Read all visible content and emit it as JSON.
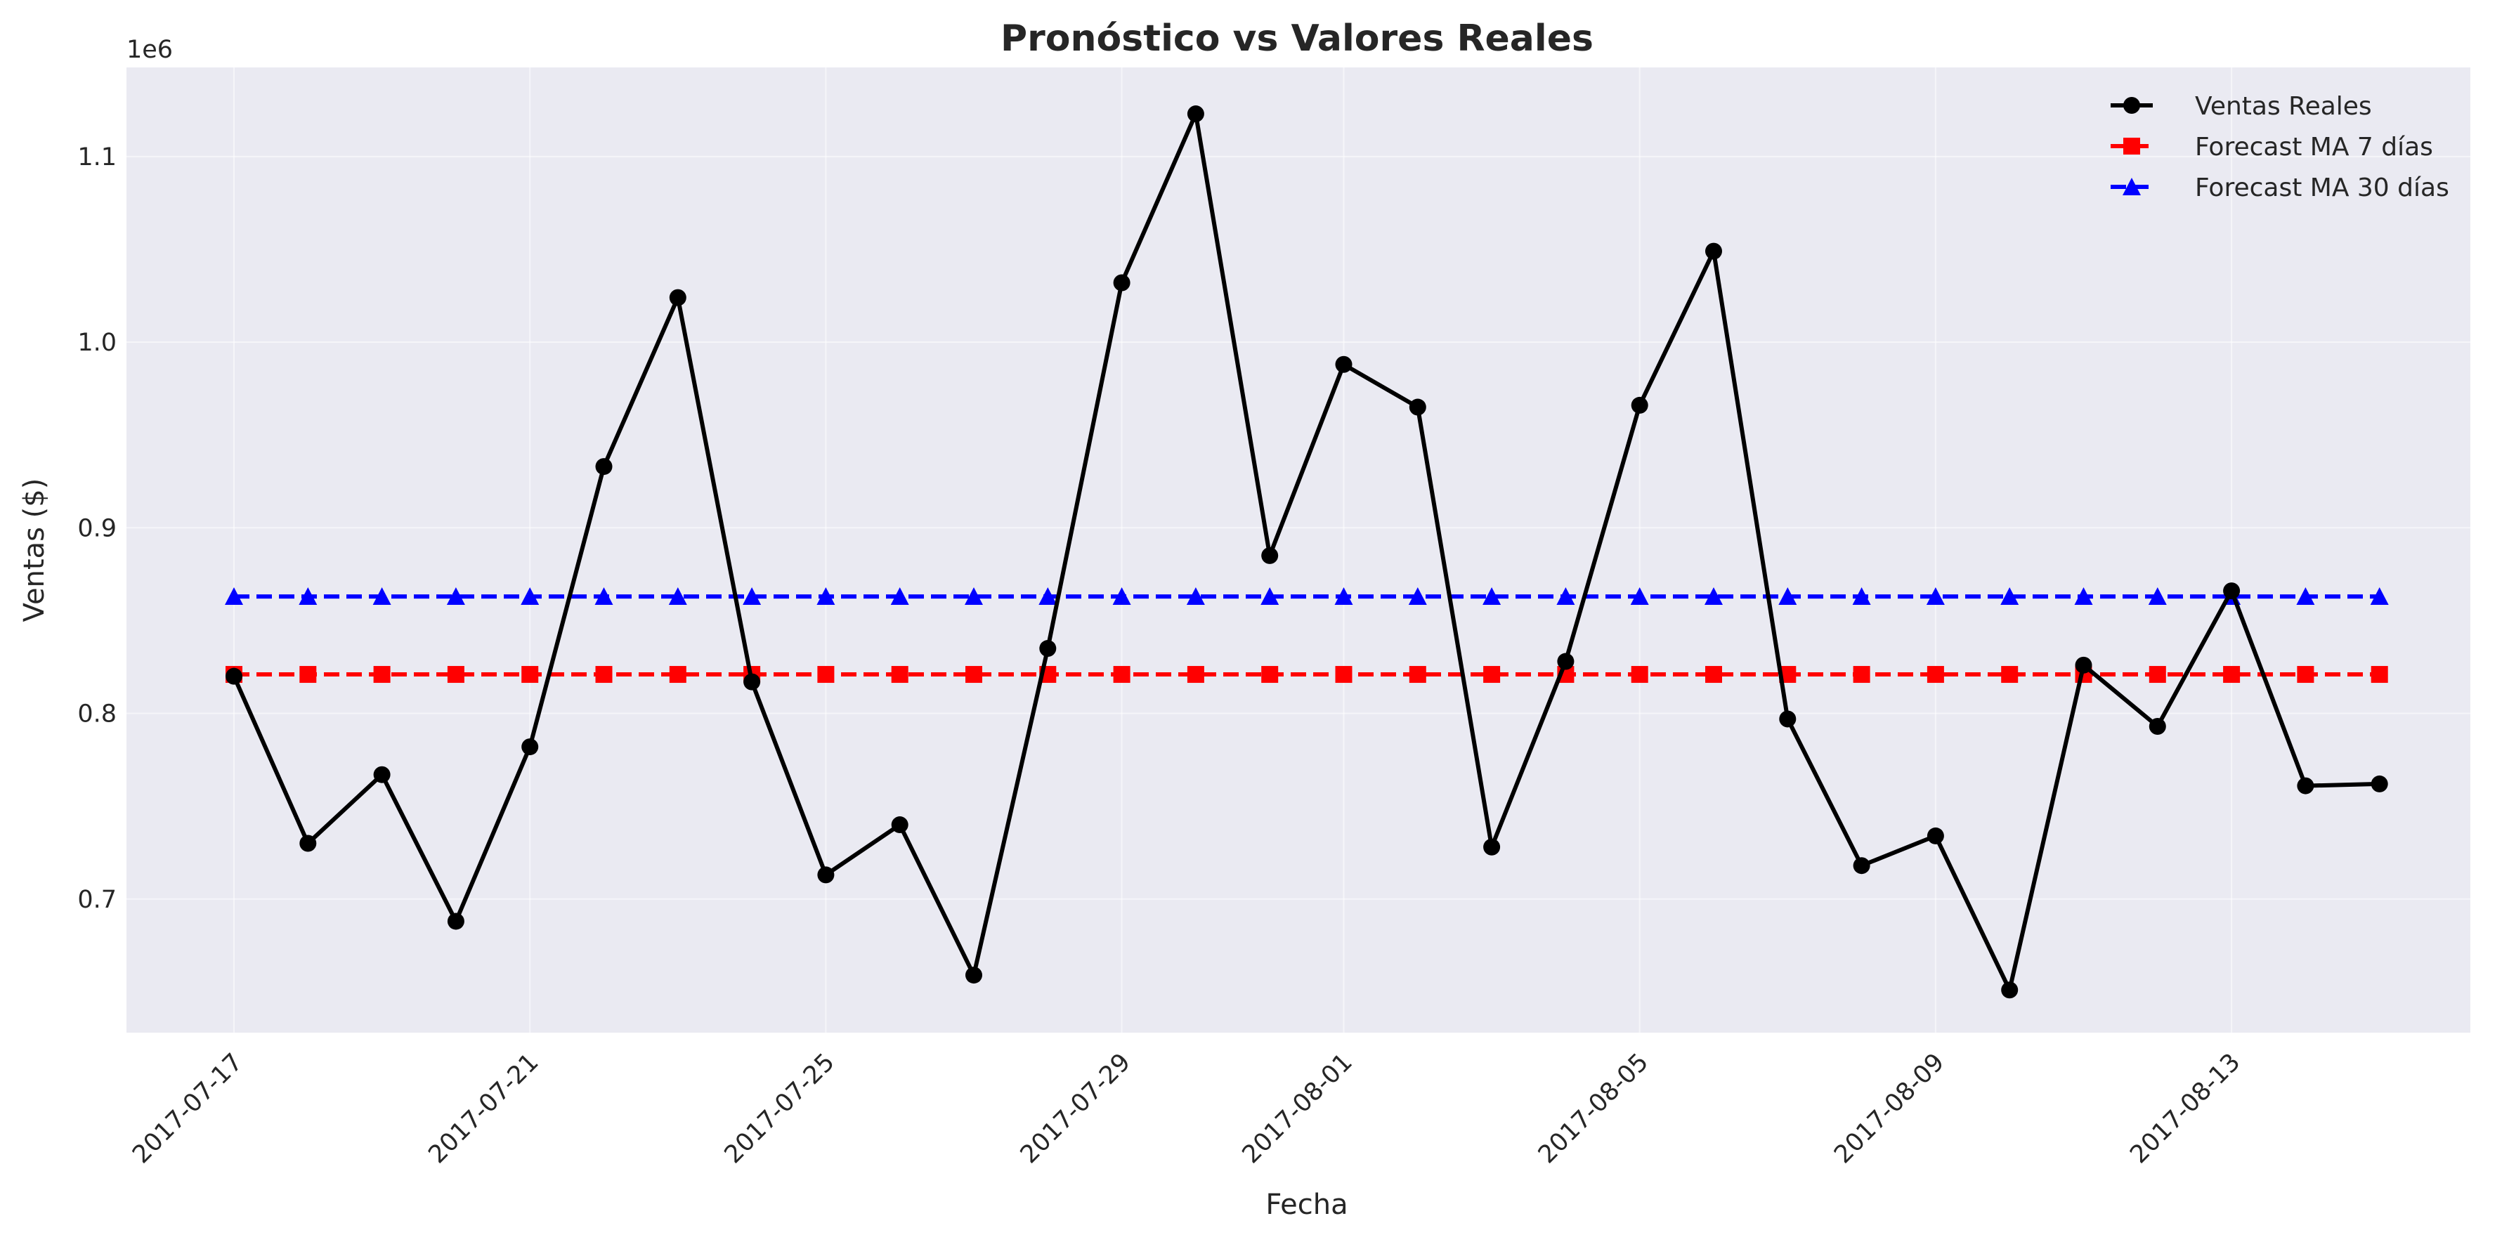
{
  "chart_data": {
    "type": "line",
    "title": "Pronóstico vs Valores Reales",
    "xlabel": "Fecha",
    "ylabel": "Ventas ($)",
    "y_offset_label": "1e6",
    "ylim": [
      0.628,
      1.148
    ],
    "y_ticks": [
      0.7,
      0.8,
      0.9,
      1.0,
      1.1
    ],
    "y_tick_labels": [
      "0.7",
      "0.8",
      "0.9",
      "1.0",
      "1.1"
    ],
    "x_tick_labels": [
      "2017-07-17",
      "2017-07-21",
      "2017-07-25",
      "2017-07-29",
      "2017-08-01",
      "2017-08-05",
      "2017-08-09",
      "2017-08-13"
    ],
    "grid": true,
    "legend_position": "top-right",
    "x": [
      "2017-07-17",
      "2017-07-18",
      "2017-07-19",
      "2017-07-20",
      "2017-07-21",
      "2017-07-22",
      "2017-07-23",
      "2017-07-24",
      "2017-07-25",
      "2017-07-26",
      "2017-07-27",
      "2017-07-28",
      "2017-07-29",
      "2017-07-30",
      "2017-07-31",
      "2017-08-01",
      "2017-08-02",
      "2017-08-03",
      "2017-08-04",
      "2017-08-05",
      "2017-08-06",
      "2017-08-07",
      "2017-08-08",
      "2017-08-09",
      "2017-08-10",
      "2017-08-11",
      "2017-08-12",
      "2017-08-13",
      "2017-08-14",
      "2017-08-15"
    ],
    "series": [
      {
        "name": "Ventas Reales",
        "color": "#000000",
        "marker": "circle",
        "linestyle": "solid",
        "values": [
          0.82,
          0.73,
          0.767,
          0.688,
          0.782,
          0.933,
          1.024,
          0.817,
          0.713,
          0.74,
          0.659,
          0.835,
          1.032,
          1.123,
          0.885,
          0.988,
          0.965,
          0.728,
          0.828,
          0.966,
          1.049,
          0.797,
          0.718,
          0.734,
          0.651,
          0.826,
          0.793,
          0.866,
          0.761,
          0.762
        ]
      },
      {
        "name": "Forecast MA 7 días",
        "color": "#ff0000",
        "marker": "square",
        "linestyle": "dashed",
        "values": [
          0.821,
          0.821,
          0.821,
          0.821,
          0.821,
          0.821,
          0.821,
          0.821,
          0.821,
          0.821,
          0.821,
          0.821,
          0.821,
          0.821,
          0.821,
          0.821,
          0.821,
          0.821,
          0.821,
          0.821,
          0.821,
          0.821,
          0.821,
          0.821,
          0.821,
          0.821,
          0.821,
          0.821,
          0.821,
          0.821
        ]
      },
      {
        "name": "Forecast MA 30 días",
        "color": "#0000ff",
        "marker": "triangle",
        "linestyle": "dashed",
        "values": [
          0.863,
          0.863,
          0.863,
          0.863,
          0.863,
          0.863,
          0.863,
          0.863,
          0.863,
          0.863,
          0.863,
          0.863,
          0.863,
          0.863,
          0.863,
          0.863,
          0.863,
          0.863,
          0.863,
          0.863,
          0.863,
          0.863,
          0.863,
          0.863,
          0.863,
          0.863,
          0.863,
          0.863,
          0.863,
          0.863
        ]
      }
    ],
    "colors": {
      "plot_background": "#eaeaf2",
      "page_background": "#ffffff"
    }
  }
}
